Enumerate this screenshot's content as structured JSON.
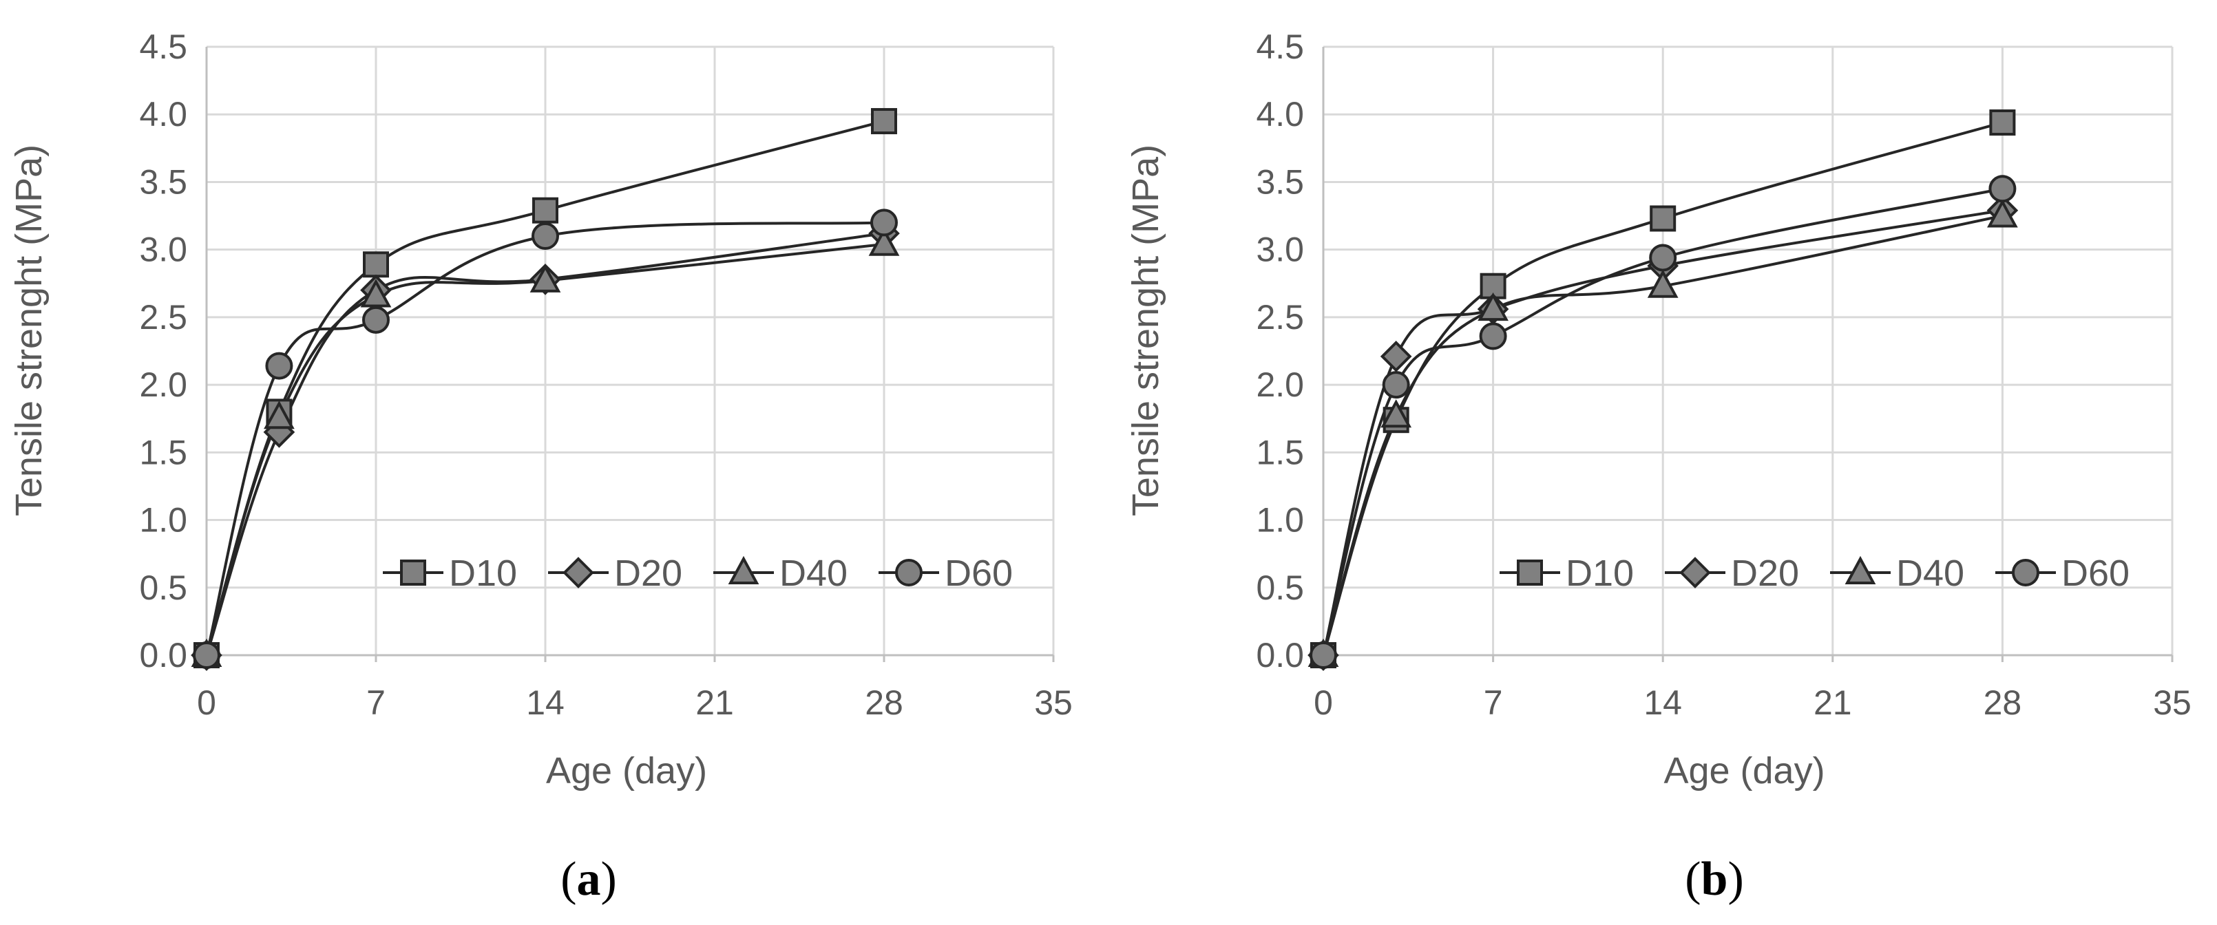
{
  "chart_data": [
    {
      "type": "line",
      "panel_label": "a",
      "xlabel": "Age (day)",
      "ylabel": "Tensile strenght (MPa)",
      "xlim": [
        0,
        35
      ],
      "ylim": [
        0,
        4.5
      ],
      "xticks": [
        0,
        7,
        14,
        21,
        28,
        35
      ],
      "yticks": [
        "0.0",
        "0.5",
        "1.0",
        "1.5",
        "2.0",
        "2.5",
        "3.0",
        "3.5",
        "4.0",
        "4.5"
      ],
      "grid": true,
      "legend_position": "lower-right",
      "series": [
        {
          "name": "D10",
          "marker": "square",
          "x": [
            0,
            3,
            7,
            14,
            28
          ],
          "y": [
            0,
            1.8,
            2.89,
            3.29,
            3.95
          ]
        },
        {
          "name": "D20",
          "marker": "diamond",
          "x": [
            0,
            3,
            7,
            14,
            28
          ],
          "y": [
            0,
            1.65,
            2.7,
            2.78,
            3.12
          ]
        },
        {
          "name": "D40",
          "marker": "triangle",
          "x": [
            0,
            3,
            7,
            14,
            28
          ],
          "y": [
            0,
            1.76,
            2.66,
            2.77,
            3.04
          ]
        },
        {
          "name": "D60",
          "marker": "circle",
          "x": [
            0,
            3,
            7,
            14,
            28
          ],
          "y": [
            0,
            2.14,
            2.48,
            3.1,
            3.2
          ]
        }
      ]
    },
    {
      "type": "line",
      "panel_label": "b",
      "xlabel": "Age (day)",
      "ylabel": "Tensile strenght (MPa)",
      "xlim": [
        0,
        35
      ],
      "ylim": [
        0,
        4.5
      ],
      "xticks": [
        0,
        7,
        14,
        21,
        28,
        35
      ],
      "yticks": [
        "0.0",
        "0.5",
        "1.0",
        "1.5",
        "2.0",
        "2.5",
        "3.0",
        "3.5",
        "4.0",
        "4.5"
      ],
      "grid": true,
      "legend_position": "lower-right",
      "series": [
        {
          "name": "D10",
          "marker": "square",
          "x": [
            0,
            3,
            7,
            14,
            28
          ],
          "y": [
            0,
            1.74,
            2.73,
            3.23,
            3.94
          ]
        },
        {
          "name": "D20",
          "marker": "diamond",
          "x": [
            0,
            3,
            7,
            14,
            28
          ],
          "y": [
            0,
            2.21,
            2.56,
            2.88,
            3.29
          ]
        },
        {
          "name": "D40",
          "marker": "triangle",
          "x": [
            0,
            3,
            7,
            14,
            28
          ],
          "y": [
            0,
            1.77,
            2.56,
            2.73,
            3.25
          ]
        },
        {
          "name": "D60",
          "marker": "circle",
          "x": [
            0,
            3,
            7,
            14,
            28
          ],
          "y": [
            0,
            2.0,
            2.36,
            2.94,
            3.45
          ]
        }
      ]
    }
  ]
}
